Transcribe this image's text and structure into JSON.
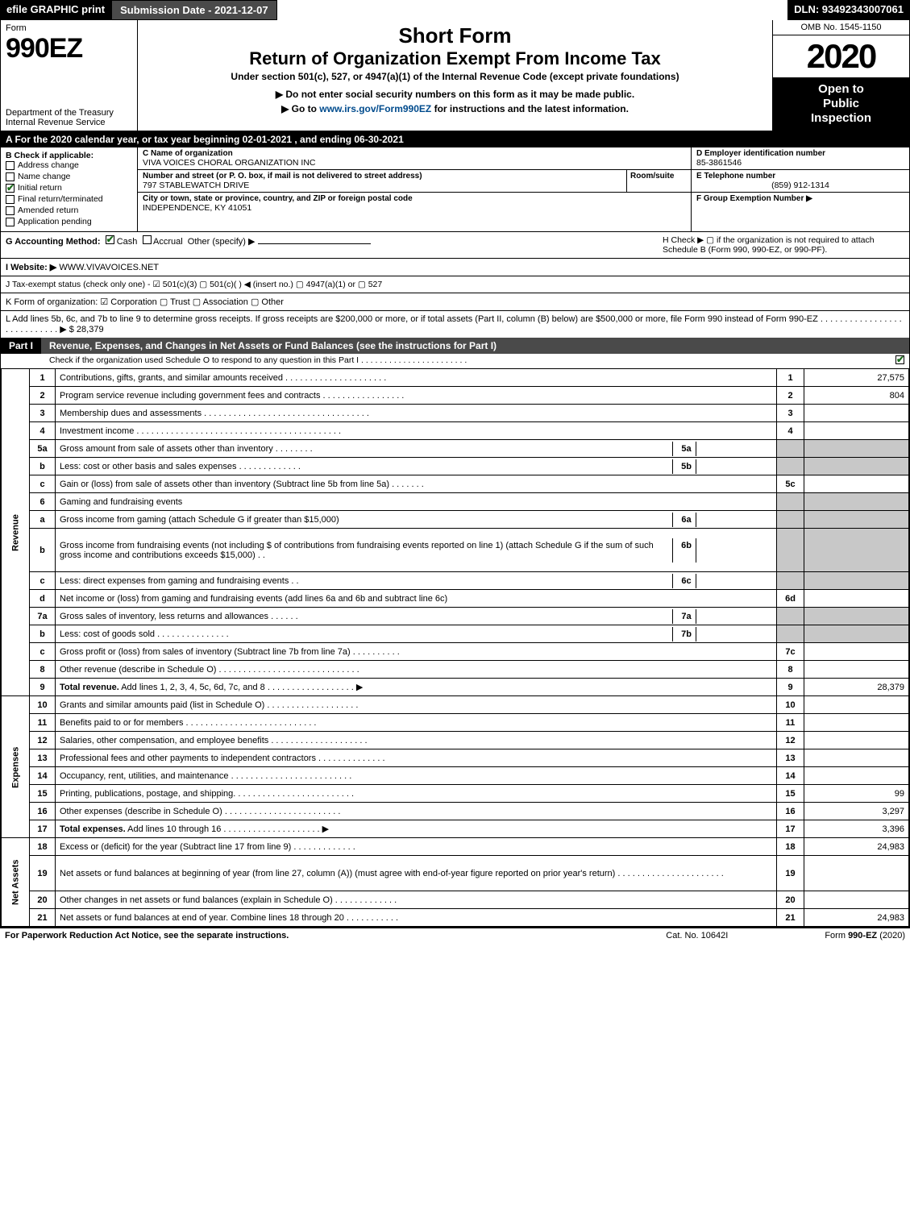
{
  "topbar": {
    "efile": "efile GRAPHIC print",
    "submission": "Submission Date - 2021-12-07",
    "dln": "DLN: 93492343007061"
  },
  "header": {
    "form_label": "Form",
    "form_number": "990EZ",
    "dept": "Department of the Treasury\nInternal Revenue Service",
    "title1": "Short Form",
    "title2": "Return of Organization Exempt From Income Tax",
    "title3": "Under section 501(c), 527, or 4947(a)(1) of the Internal Revenue Code (except private foundations)",
    "title4": "▶ Do not enter social security numbers on this form as it may be made public.",
    "title5": "▶ Go to www.irs.gov/Form990EZ for instructions and the latest information.",
    "irs_link": "www.irs.gov/Form990EZ",
    "omb": "OMB No. 1545-1150",
    "year": "2020",
    "open": "Open to\nPublic\nInspection"
  },
  "barA": "A For the 2020 calendar year, or tax year beginning 02-01-2021 , and ending 06-30-2021",
  "sectionB": {
    "label": "B  Check if applicable:",
    "items": [
      {
        "label": "Address change",
        "checked": false
      },
      {
        "label": "Name change",
        "checked": false
      },
      {
        "label": "Initial return",
        "checked": true
      },
      {
        "label": "Final return/terminated",
        "checked": false
      },
      {
        "label": "Amended return",
        "checked": false
      },
      {
        "label": "Application pending",
        "checked": false
      }
    ]
  },
  "sectionC": {
    "name_label": "C Name of organization",
    "name": "VIVA VOICES CHORAL ORGANIZATION INC",
    "addr_label": "Number and street (or P. O. box, if mail is not delivered to street address)",
    "room_label": "Room/suite",
    "addr": "797 STABLEWATCH DRIVE",
    "city_label": "City or town, state or province, country, and ZIP or foreign postal code",
    "city": "INDEPENDENCE, KY  41051"
  },
  "sectionDEF": {
    "d_label": "D Employer identification number",
    "ein": "85-3861546",
    "e_label": "E Telephone number",
    "phone": "(859) 912-1314",
    "f_label": "F Group Exemption Number  ▶"
  },
  "rowG": {
    "label": "G Accounting Method:",
    "cash": "Cash",
    "accrual": "Accrual",
    "other": "Other (specify) ▶",
    "h": "H  Check ▶ ▢ if the organization is not required to attach Schedule B (Form 990, 990-EZ, or 990-PF)."
  },
  "rowI": {
    "label": "I Website: ▶",
    "site": "WWW.VIVAVOICES.NET"
  },
  "rowJ": "J Tax-exempt status (check only one) - ☑ 501(c)(3)  ▢ 501(c)(  ) ◀ (insert no.)  ▢ 4947(a)(1) or  ▢ 527",
  "rowK": "K Form of organization:  ☑ Corporation  ▢ Trust  ▢ Association  ▢ Other",
  "rowL": "L Add lines 5b, 6c, and 7b to line 9 to determine gross receipts. If gross receipts are $200,000 or more, or if total assets (Part II, column (B) below) are $500,000 or more, file Form 990 instead of Form 990-EZ  . . . . . . . . . . . . . . . . . . . . . . . . . . . .  ▶ $ 28,379",
  "part1": {
    "label": "Part I",
    "title": "Revenue, Expenses, and Changes in Net Assets or Fund Balances (see the instructions for Part I)",
    "subtitle": "Check if the organization used Schedule O to respond to any question in this Part I . . . . . . . . . . . . . . . . . . . . . . ."
  },
  "sections": {
    "revenue": "Revenue",
    "expenses": "Expenses",
    "netassets": "Net Assets"
  },
  "lines": [
    {
      "n": "1",
      "d": "Contributions, gifts, grants, and similar amounts received . . . . . . . . . . . . . . . . . . . . .",
      "r": "1",
      "v": "27,575"
    },
    {
      "n": "2",
      "d": "Program service revenue including government fees and contracts . . . . . . . . . . . . . . . . .",
      "r": "2",
      "v": "804"
    },
    {
      "n": "3",
      "d": "Membership dues and assessments . . . . . . . . . . . . . . . . . . . . . . . . . . . . . . . . . .",
      "r": "3",
      "v": ""
    },
    {
      "n": "4",
      "d": "Investment income . . . . . . . . . . . . . . . . . . . . . . . . . . . . . . . . . . . . . . . . . .",
      "r": "4",
      "v": ""
    },
    {
      "n": "5a",
      "d": "Gross amount from sale of assets other than inventory . . . . . . . .",
      "sub": "5a"
    },
    {
      "n": "b",
      "d": "Less: cost or other basis and sales expenses . . . . . . . . . . . . .",
      "sub": "5b"
    },
    {
      "n": "c",
      "d": "Gain or (loss) from sale of assets other than inventory (Subtract line 5b from line 5a) . . . . . . .",
      "r": "5c",
      "v": ""
    },
    {
      "n": "6",
      "d": "Gaming and fundraising events"
    },
    {
      "n": "a",
      "d": "Gross income from gaming (attach Schedule G if greater than $15,000)",
      "sub": "6a"
    },
    {
      "n": "b",
      "d": "Gross income from fundraising events (not including $                         of contributions from fundraising events reported on line 1) (attach Schedule G if the sum of such gross income and contributions exceeds $15,000)   . .",
      "sub": "6b",
      "tall": true
    },
    {
      "n": "c",
      "d": "Less: direct expenses from gaming and fundraising events   . .",
      "sub": "6c"
    },
    {
      "n": "d",
      "d": "Net income or (loss) from gaming and fundraising events (add lines 6a and 6b and subtract line 6c)",
      "r": "6d",
      "v": ""
    },
    {
      "n": "7a",
      "d": "Gross sales of inventory, less returns and allowances . . . . . .",
      "sub": "7a"
    },
    {
      "n": "b",
      "d": "Less: cost of goods sold           . . . . . . . . . . . . . . .",
      "sub": "7b"
    },
    {
      "n": "c",
      "d": "Gross profit or (loss) from sales of inventory (Subtract line 7b from line 7a) . . . . . . . . . .",
      "r": "7c",
      "v": ""
    },
    {
      "n": "8",
      "d": "Other revenue (describe in Schedule O) . . . . . . . . . . . . . . . . . . . . . . . . . . . . .",
      "r": "8",
      "v": ""
    },
    {
      "n": "9",
      "d": "Total revenue. Add lines 1, 2, 3, 4, 5c, 6d, 7c, and 8  . . . . . . . . . . . . . . . . . .    ▶",
      "r": "9",
      "v": "28,379",
      "bold": true
    }
  ],
  "exp": [
    {
      "n": "10",
      "d": "Grants and similar amounts paid (list in Schedule O) . . . . . . . . . . . . . . . . . . .",
      "r": "10",
      "v": ""
    },
    {
      "n": "11",
      "d": "Benefits paid to or for members       . . . . . . . . . . . . . . . . . . . . . . . . . . .",
      "r": "11",
      "v": ""
    },
    {
      "n": "12",
      "d": "Salaries, other compensation, and employee benefits . . . . . . . . . . . . . . . . . . . .",
      "r": "12",
      "v": ""
    },
    {
      "n": "13",
      "d": "Professional fees and other payments to independent contractors . . . . . . . . . . . . . .",
      "r": "13",
      "v": ""
    },
    {
      "n": "14",
      "d": "Occupancy, rent, utilities, and maintenance . . . . . . . . . . . . . . . . . . . . . . . . .",
      "r": "14",
      "v": ""
    },
    {
      "n": "15",
      "d": "Printing, publications, postage, and shipping. . . . . . . . . . . . . . . . . . . . . . . . .",
      "r": "15",
      "v": "99"
    },
    {
      "n": "16",
      "d": "Other expenses (describe in Schedule O)     . . . . . . . . . . . . . . . . . . . . . . . .",
      "r": "16",
      "v": "3,297"
    },
    {
      "n": "17",
      "d": "Total expenses. Add lines 10 through 16     . . . . . . . . . . . . . . . . . . . .    ▶",
      "r": "17",
      "v": "3,396",
      "bold": true
    }
  ],
  "net": [
    {
      "n": "18",
      "d": "Excess or (deficit) for the year (Subtract line 17 from line 9)        . . . . . . . . . . . . .",
      "r": "18",
      "v": "24,983"
    },
    {
      "n": "19",
      "d": "Net assets or fund balances at beginning of year (from line 27, column (A)) (must agree with end-of-year figure reported on prior year's return) . . . . . . . . . . . . . . . . . . . . . .",
      "r": "19",
      "v": "",
      "tall": true
    },
    {
      "n": "20",
      "d": "Other changes in net assets or fund balances (explain in Schedule O) . . . . . . . . . . . . .",
      "r": "20",
      "v": ""
    },
    {
      "n": "21",
      "d": "Net assets or fund balances at end of year. Combine lines 18 through 20 . . . . . . . . . . .",
      "r": "21",
      "v": "24,983"
    }
  ],
  "footer": {
    "f1": "For Paperwork Reduction Act Notice, see the separate instructions.",
    "f2": "Cat. No. 10642I",
    "f3": "Form 990-EZ (2020)"
  },
  "colors": {
    "black": "#000000",
    "darkgray": "#4a4a4a",
    "cellgray": "#c8c8c8",
    "checkgreen": "#1a6b1a",
    "link": "#004b8d"
  }
}
